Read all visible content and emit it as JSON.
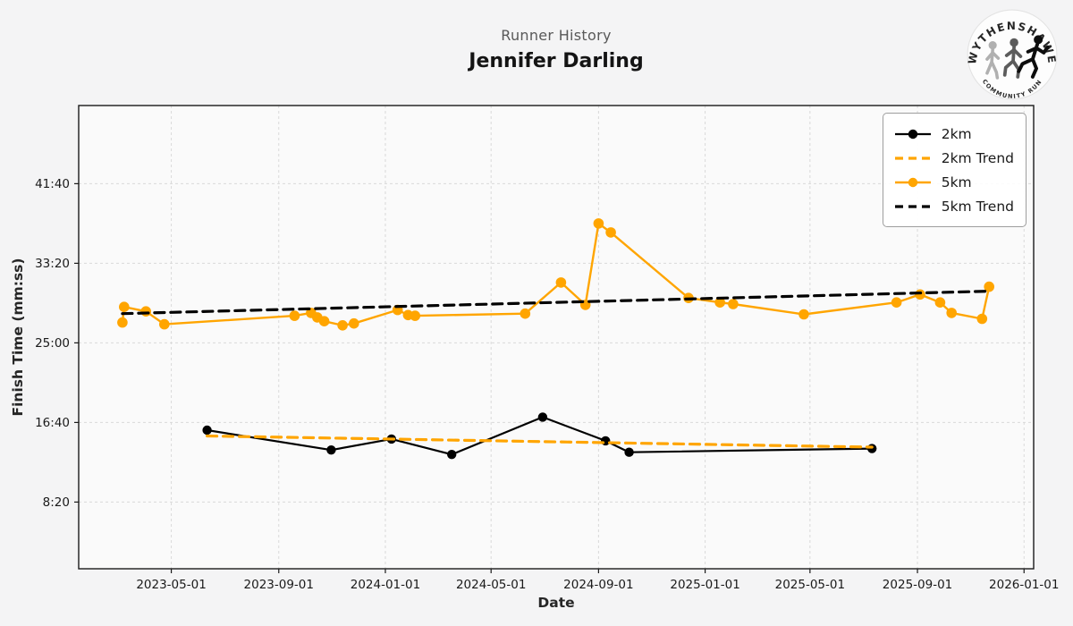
{
  "header": {
    "suptitle": "Runner History",
    "runner_name": "Jennifer Darling"
  },
  "logo": {
    "top_text": "WYTHENSHAWE",
    "bottom_text": "COMMUNITY RUN"
  },
  "colors": {
    "orange": "#FFA500",
    "black": "#000000",
    "figure_bg": "#f4f4f5",
    "axes_bg": "#fafafa",
    "grid": "#d9d9d9",
    "spine": "#1a1a1a",
    "title_gray": "#595959"
  },
  "legend": {
    "position": "upper right",
    "items": [
      "2km",
      "2km Trend",
      "5km",
      "5km Trend"
    ]
  },
  "chart_data": {
    "type": "line",
    "title": "Runner History",
    "subtitle": "Jennifer Darling",
    "xlabel": "Date",
    "ylabel": "Finish Time (mm:ss)",
    "grid": true,
    "x_domain": [
      "2023-01-15",
      "2026-01-12"
    ],
    "y_domain_seconds": [
      81,
      2991
    ],
    "x_ticks": [
      "2023-05-01",
      "2023-09-01",
      "2024-01-01",
      "2024-05-01",
      "2024-09-01",
      "2025-01-01",
      "2025-05-01",
      "2025-09-01",
      "2026-01-01"
    ],
    "y_ticks": [
      {
        "seconds": 2500,
        "label": "41:40"
      },
      {
        "seconds": 2000,
        "label": "33:20"
      },
      {
        "seconds": 1500,
        "label": "25:00"
      },
      {
        "seconds": 1000,
        "label": "16:40"
      },
      {
        "seconds": 500,
        "label": "8:20"
      }
    ],
    "series": [
      {
        "name": "2km",
        "color": "#000000",
        "style": "solid",
        "marker": true,
        "width": 2.2,
        "marker_r": 5.2,
        "points": [
          [
            "2023-06-11",
            "15:52"
          ],
          [
            "2023-10-31",
            "13:47"
          ],
          [
            "2024-01-08",
            "14:56"
          ],
          [
            "2024-03-17",
            "13:19"
          ],
          [
            "2024-06-29",
            "17:14"
          ],
          [
            "2024-09-09",
            "14:45"
          ],
          [
            "2024-10-06",
            "13:33"
          ],
          [
            "2025-07-11",
            "13:56"
          ]
        ]
      },
      {
        "name": "2km Trend",
        "color": "#FFA500",
        "style": "dashed",
        "marker": false,
        "width": 3.2,
        "points": [
          [
            "2023-06-11",
            "15:15"
          ],
          [
            "2025-07-11",
            "14:05"
          ]
        ]
      },
      {
        "name": "5km",
        "color": "#FFA500",
        "style": "solid",
        "marker": true,
        "width": 2.4,
        "marker_r": 5.8,
        "points": [
          [
            "2023-03-06",
            "27:08"
          ],
          [
            "2023-03-08",
            "28:46"
          ],
          [
            "2023-04-02",
            "28:18"
          ],
          [
            "2023-04-23",
            "26:57"
          ],
          [
            "2023-09-19",
            "27:50"
          ],
          [
            "2023-10-08",
            "28:08"
          ],
          [
            "2023-10-15",
            "27:40"
          ],
          [
            "2023-10-23",
            "27:16"
          ],
          [
            "2023-11-13",
            "26:50"
          ],
          [
            "2023-11-26",
            "27:02"
          ],
          [
            "2024-01-15",
            "28:27"
          ],
          [
            "2024-01-27",
            "27:55"
          ],
          [
            "2024-02-04",
            "27:50"
          ],
          [
            "2024-06-09",
            "28:04"
          ],
          [
            "2024-07-20",
            "31:19"
          ],
          [
            "2024-08-17",
            "28:59"
          ],
          [
            "2024-09-01",
            "37:30"
          ],
          [
            "2024-09-15",
            "36:34"
          ],
          [
            "2024-12-13",
            "29:42"
          ],
          [
            "2025-01-18",
            "29:14"
          ],
          [
            "2025-02-02",
            "29:04"
          ],
          [
            "2025-04-24",
            "27:59"
          ],
          [
            "2025-08-08",
            "29:14"
          ],
          [
            "2025-09-04",
            "30:04"
          ],
          [
            "2025-09-27",
            "29:14"
          ],
          [
            "2025-10-10",
            "28:08"
          ],
          [
            "2025-11-14",
            "27:31"
          ],
          [
            "2025-11-22",
            "30:53"
          ]
        ]
      },
      {
        "name": "5km Trend",
        "color": "#000000",
        "style": "dashed",
        "marker": false,
        "width": 3.2,
        "points": [
          [
            "2023-03-06",
            "28:04"
          ],
          [
            "2025-11-22",
            "30:25"
          ]
        ]
      }
    ]
  }
}
